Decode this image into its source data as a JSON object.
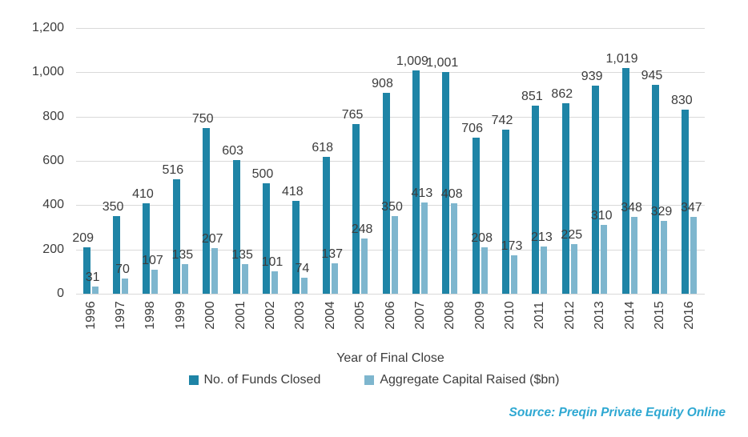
{
  "chart_data": {
    "type": "bar",
    "title": "",
    "xlabel": "Year of Final Close",
    "ylabel": "",
    "ylim": [
      0,
      1200
    ],
    "ytick_step": 200,
    "grid": true,
    "legend_position": "bottom",
    "categories": [
      "1996",
      "1997",
      "1998",
      "1999",
      "2000",
      "2001",
      "2002",
      "2003",
      "2004",
      "2005",
      "2006",
      "2007",
      "2008",
      "2009",
      "2010",
      "2011",
      "2012",
      "2013",
      "2014",
      "2015",
      "2016"
    ],
    "series": [
      {
        "name": "No. of Funds Closed",
        "color": "#1E84A6",
        "values": [
          209,
          350,
          410,
          516,
          750,
          603,
          500,
          418,
          618,
          765,
          908,
          1009,
          1001,
          706,
          742,
          851,
          862,
          939,
          1019,
          945,
          830
        ]
      },
      {
        "name": "Aggregate Capital Raised ($bn)",
        "color": "#7EB6CE",
        "values": [
          31,
          70,
          107,
          135,
          207,
          135,
          101,
          74,
          137,
          248,
          350,
          413,
          408,
          208,
          173,
          213,
          225,
          310,
          348,
          329,
          347
        ]
      }
    ]
  },
  "source_note": "Source: Preqin Private Equity Online",
  "colors": {
    "gridline": "#d9d9d9",
    "label_text": "#3c3c3c",
    "source_text": "#2EA8D2"
  }
}
